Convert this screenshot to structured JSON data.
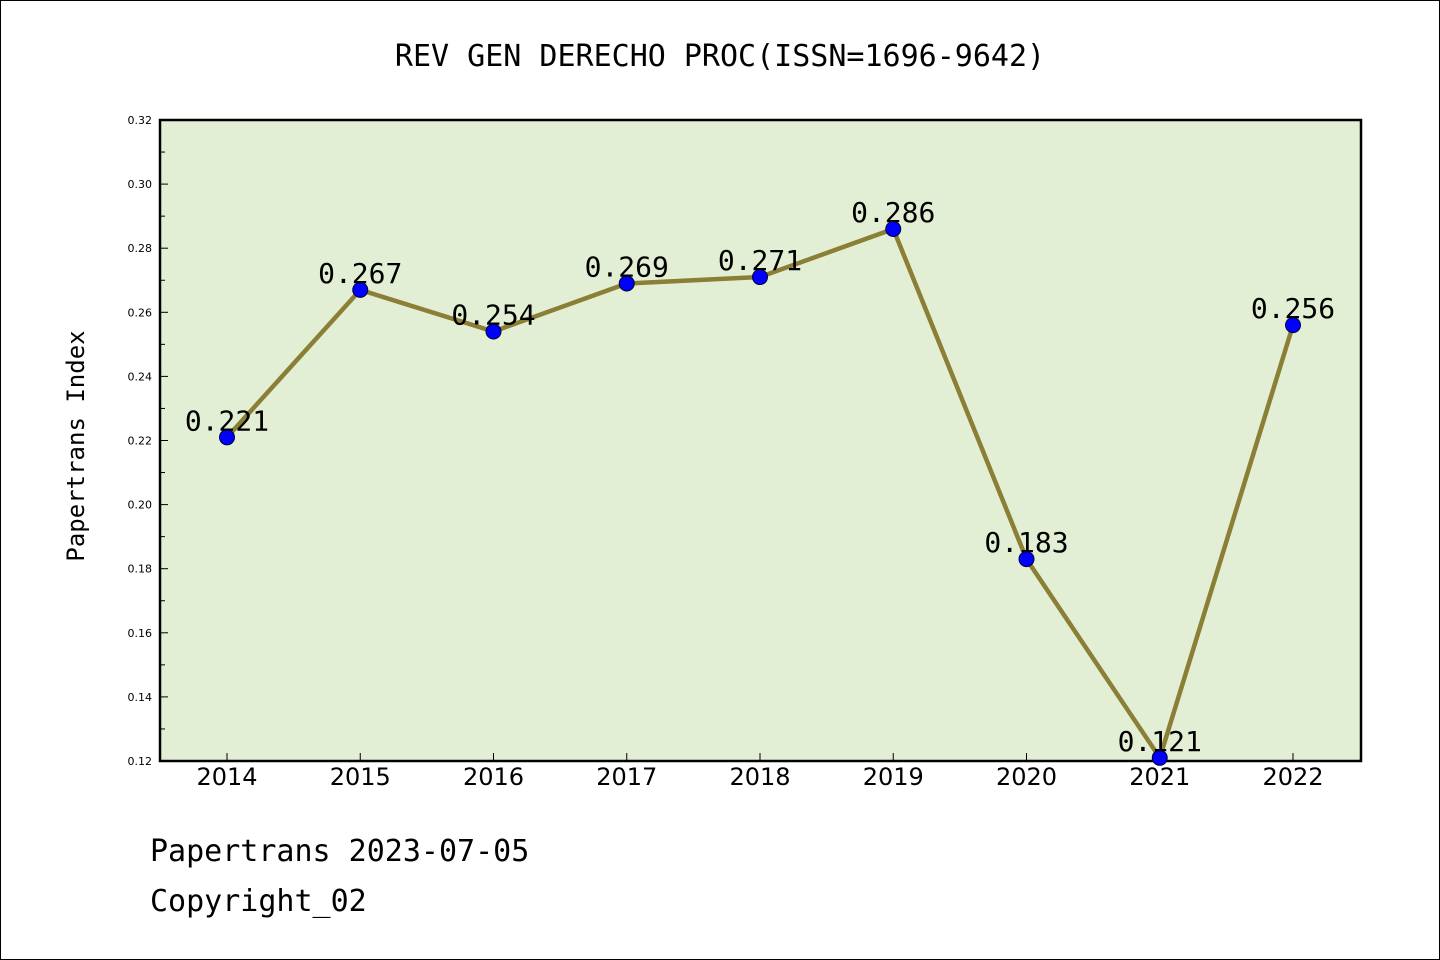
{
  "chart_data": {
    "type": "line",
    "title": "REV GEN DERECHO PROC(ISSN=1696-9642)",
    "xlabel": "",
    "ylabel": "Papertrans Index",
    "categories": [
      "2014",
      "2015",
      "2016",
      "2017",
      "2018",
      "2019",
      "2020",
      "2021",
      "2022"
    ],
    "values": [
      0.221,
      0.267,
      0.254,
      0.269,
      0.271,
      0.286,
      0.183,
      0.121,
      0.256
    ],
    "data_labels": [
      "0.221",
      "0.267",
      "0.254",
      "0.269",
      "0.271",
      "0.286",
      "0.183",
      "0.121",
      "0.256"
    ],
    "ylim": [
      0.12,
      0.32
    ],
    "y_ticks": [
      "0.12",
      "0.14",
      "0.16",
      "0.18",
      "0.20",
      "0.22",
      "0.24",
      "0.26",
      "0.28",
      "0.30",
      "0.32"
    ],
    "grid": false,
    "legend": "none",
    "colors": {
      "plot_background": "#e2efd4",
      "line": "#8b7e35",
      "marker": "#0000ff"
    }
  },
  "footer": {
    "line1": "Papertrans 2023-07-05",
    "line2": "Copyright_02"
  }
}
